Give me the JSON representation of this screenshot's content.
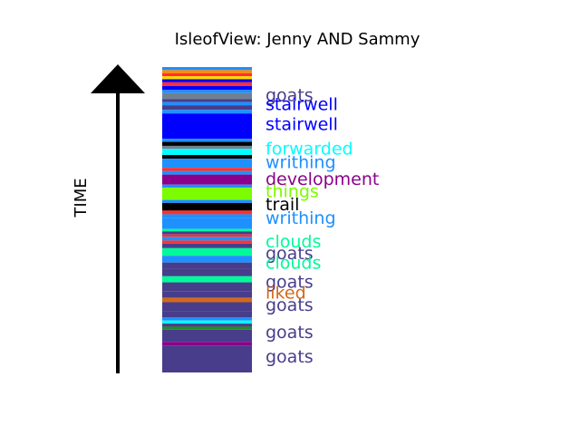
{
  "chart_data": {
    "type": "bar",
    "title": "IsleofView: Jenny AND Sammy",
    "ylabel": "TIME",
    "timeline_colors": {
      "goats": "#483d8b",
      "stairwell": "#0000ff",
      "forwarded": "#00ffff",
      "writhing": "#1e90ff",
      "development": "#8b008b",
      "things": "#7cfc00",
      "trail": "#000000",
      "clouds": "#00fa9a",
      "liked": "#d2691e",
      "misc_red": "#ff3030",
      "misc_orange": "#ff8c00",
      "misc_yellow": "#ffd700",
      "misc_green": "#228b22",
      "misc_gray": "#708090"
    },
    "bands": [
      {
        "from": 0.0,
        "to": 0.01,
        "topic": "writhing"
      },
      {
        "from": 0.01,
        "to": 0.02,
        "topic": "misc_orange"
      },
      {
        "from": 0.02,
        "to": 0.03,
        "topic": "misc_red"
      },
      {
        "from": 0.03,
        "to": 0.04,
        "topic": "misc_yellow"
      },
      {
        "from": 0.04,
        "to": 0.05,
        "topic": "stairwell"
      },
      {
        "from": 0.05,
        "to": 0.062,
        "topic": "misc_red"
      },
      {
        "from": 0.062,
        "to": 0.075,
        "topic": "stairwell"
      },
      {
        "from": 0.075,
        "to": 0.085,
        "topic": "writhing"
      },
      {
        "from": 0.085,
        "to": 0.105,
        "topic": "misc_gray"
      },
      {
        "from": 0.105,
        "to": 0.115,
        "topic": "goats"
      },
      {
        "from": 0.115,
        "to": 0.125,
        "topic": "writhing"
      },
      {
        "from": 0.125,
        "to": 0.14,
        "topic": "goats"
      },
      {
        "from": 0.14,
        "to": 0.152,
        "topic": "writhing"
      },
      {
        "from": 0.152,
        "to": 0.235,
        "topic": "stairwell"
      },
      {
        "from": 0.235,
        "to": 0.245,
        "topic": "writhing"
      },
      {
        "from": 0.245,
        "to": 0.258,
        "topic": "trail"
      },
      {
        "from": 0.258,
        "to": 0.268,
        "topic": "misc_gray"
      },
      {
        "from": 0.268,
        "to": 0.288,
        "topic": "forwarded"
      },
      {
        "from": 0.288,
        "to": 0.3,
        "topic": "trail"
      },
      {
        "from": 0.3,
        "to": 0.33,
        "topic": "writhing"
      },
      {
        "from": 0.33,
        "to": 0.34,
        "topic": "misc_red"
      },
      {
        "from": 0.34,
        "to": 0.352,
        "topic": "writhing"
      },
      {
        "from": 0.352,
        "to": 0.385,
        "topic": "development"
      },
      {
        "from": 0.385,
        "to": 0.395,
        "topic": "writhing"
      },
      {
        "from": 0.395,
        "to": 0.435,
        "topic": "things"
      },
      {
        "from": 0.435,
        "to": 0.445,
        "topic": "writhing"
      },
      {
        "from": 0.445,
        "to": 0.47,
        "topic": "trail"
      },
      {
        "from": 0.47,
        "to": 0.482,
        "topic": "misc_red"
      },
      {
        "from": 0.482,
        "to": 0.495,
        "topic": "writhing"
      },
      {
        "from": 0.495,
        "to": 0.53,
        "topic": "writhing"
      },
      {
        "from": 0.53,
        "to": 0.538,
        "topic": "clouds"
      },
      {
        "from": 0.538,
        "to": 0.548,
        "topic": "goats"
      },
      {
        "from": 0.548,
        "to": 0.556,
        "topic": "misc_red"
      },
      {
        "from": 0.556,
        "to": 0.568,
        "topic": "writhing"
      },
      {
        "from": 0.568,
        "to": 0.578,
        "topic": "misc_red"
      },
      {
        "from": 0.578,
        "to": 0.593,
        "topic": "goats"
      },
      {
        "from": 0.593,
        "to": 0.618,
        "topic": "clouds"
      },
      {
        "from": 0.618,
        "to": 0.64,
        "topic": "writhing"
      },
      {
        "from": 0.64,
        "to": 0.66,
        "topic": "goats"
      },
      {
        "from": 0.66,
        "to": 0.685,
        "topic": "goats"
      },
      {
        "from": 0.685,
        "to": 0.705,
        "topic": "clouds"
      },
      {
        "from": 0.705,
        "to": 0.735,
        "topic": "goats"
      },
      {
        "from": 0.735,
        "to": 0.755,
        "topic": "goats"
      },
      {
        "from": 0.755,
        "to": 0.77,
        "topic": "liked"
      },
      {
        "from": 0.77,
        "to": 0.8,
        "topic": "goats"
      },
      {
        "from": 0.8,
        "to": 0.82,
        "topic": "goats"
      },
      {
        "from": 0.82,
        "to": 0.83,
        "topic": "writhing"
      },
      {
        "from": 0.83,
        "to": 0.84,
        "topic": "forwarded"
      },
      {
        "from": 0.84,
        "to": 0.85,
        "topic": "goats"
      },
      {
        "from": 0.85,
        "to": 0.86,
        "topic": "misc_green"
      },
      {
        "from": 0.86,
        "to": 0.9,
        "topic": "goats"
      },
      {
        "from": 0.9,
        "to": 0.912,
        "topic": "development"
      },
      {
        "from": 0.912,
        "to": 1.0,
        "topic": "goats"
      }
    ],
    "labels": [
      {
        "text": "goats",
        "at": 0.09,
        "topic": "goats"
      },
      {
        "text": "stairwell",
        "at": 0.12,
        "topic": "stairwell"
      },
      {
        "text": "stairwell",
        "at": 0.185,
        "topic": "stairwell"
      },
      {
        "text": "forwarded",
        "at": 0.265,
        "topic": "forwarded"
      },
      {
        "text": "writhing",
        "at": 0.31,
        "topic": "writhing"
      },
      {
        "text": "development",
        "at": 0.365,
        "topic": "development"
      },
      {
        "text": "things",
        "at": 0.405,
        "topic": "things"
      },
      {
        "text": "trail",
        "at": 0.448,
        "topic": "trail"
      },
      {
        "text": "writhing",
        "at": 0.493,
        "topic": "writhing"
      },
      {
        "text": "clouds",
        "at": 0.57,
        "topic": "clouds"
      },
      {
        "text": "goats",
        "at": 0.608,
        "topic": "goats"
      },
      {
        "text": "clouds",
        "at": 0.64,
        "topic": "clouds"
      },
      {
        "text": "goats",
        "at": 0.702,
        "topic": "goats"
      },
      {
        "text": "liked",
        "at": 0.738,
        "topic": "liked"
      },
      {
        "text": "goats",
        "at": 0.778,
        "topic": "goats"
      },
      {
        "text": "goats",
        "at": 0.867,
        "topic": "goats"
      },
      {
        "text": "goats",
        "at": 0.947,
        "topic": "goats"
      }
    ]
  }
}
